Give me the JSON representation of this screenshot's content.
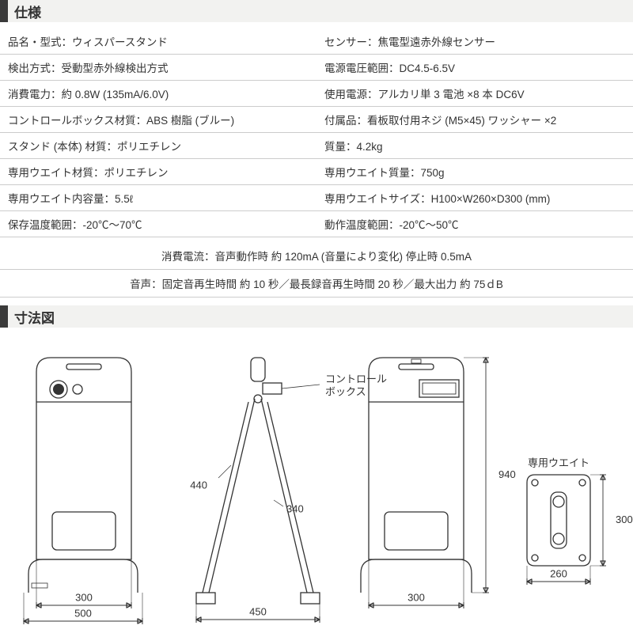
{
  "sections": {
    "spec_title": "仕様",
    "dim_title": "寸法図"
  },
  "spec_rows": [
    [
      "品名・型式：ウィスパースタンド",
      "センサー：焦電型遠赤外線センサー"
    ],
    [
      "検出方式：受動型赤外線検出方式",
      "電源電圧範囲：DC4.5-6.5V"
    ],
    [
      "消費電力：約 0.8W (135mA/6.0V)",
      "使用電源：アルカリ単 3 電池 ×8 本 DC6V"
    ],
    [
      "コントロールボックス材質：ABS 樹脂 (ブルー)",
      "付属品：看板取付用ネジ (M5×45) ワッシャー ×2"
    ],
    [
      "スタンド (本体) 材質：ポリエチレン",
      "質量：4.2kg"
    ],
    [
      "専用ウエイト材質：ポリエチレン",
      "専用ウエイト質量：750g"
    ],
    [
      "専用ウエイト内容量：5.5ℓ",
      "専用ウエイトサイズ：H100×W260×D300 (mm)"
    ],
    [
      "保存温度範囲：-20℃〜70℃",
      "動作温度範囲：-20℃〜50℃"
    ]
  ],
  "spec_full_rows": [
    "消費電流：音声動作時 約 120mA (音量により変化) 停止時 0.5mA",
    "音声：固定音再生時間 約 10 秒／最長録音再生時間 20 秒／最大出力 約 75ｄB"
  ],
  "diagram": {
    "labels": {
      "control_box": "コントロール\nボックス",
      "weight": "専用ウエイト"
    },
    "dims": {
      "front_inner": "300",
      "front_outer": "500",
      "side_upper": "440",
      "side_lower": "340",
      "side_base": "450",
      "rear_height": "940",
      "rear_base": "300",
      "weight_h": "300",
      "weight_w": "260"
    },
    "stroke": "#333333",
    "stroke_w": 1.3,
    "font_size": 13
  }
}
